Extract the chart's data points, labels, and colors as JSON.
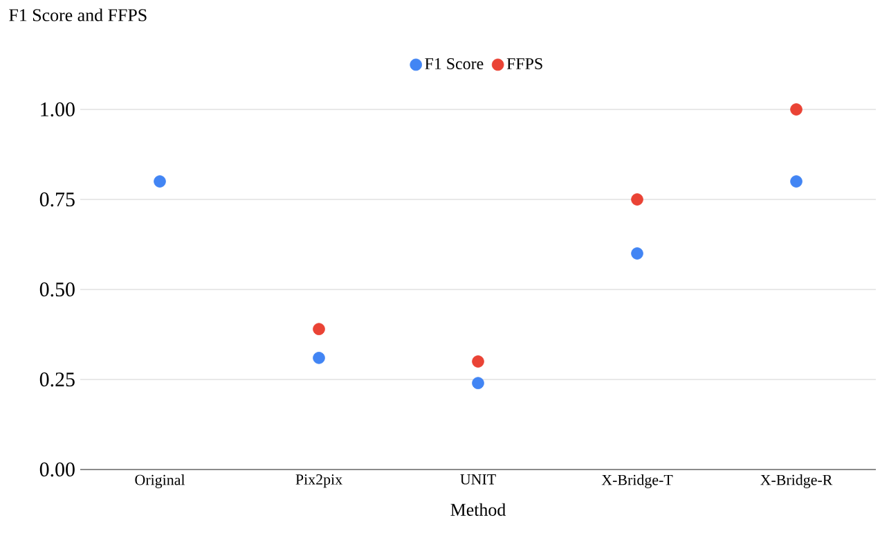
{
  "chart_data": {
    "type": "scatter",
    "title": "F1 Score and FFPS",
    "xlabel": "Method",
    "categories": [
      "Original",
      "Pix2pix",
      "UNIT",
      "X-Bridge-T",
      "X-Bridge-R"
    ],
    "series": [
      {
        "name": "F1 Score",
        "color": "#4285f4",
        "values": [
          0.8,
          0.31,
          0.24,
          0.6,
          0.8
        ]
      },
      {
        "name": "FFPS",
        "color": "#ea4335",
        "values": [
          null,
          0.39,
          0.3,
          0.75,
          1.0
        ]
      }
    ],
    "ylim": [
      0,
      1
    ],
    "yticks": [
      {
        "value": 0,
        "label": "0.00"
      },
      {
        "value": 0.25,
        "label": "0.25"
      },
      {
        "value": 0.5,
        "label": "0.50"
      },
      {
        "value": 0.75,
        "label": "0.75"
      },
      {
        "value": 1,
        "label": "1.00"
      }
    ],
    "grid": "y",
    "legend": "top"
  }
}
